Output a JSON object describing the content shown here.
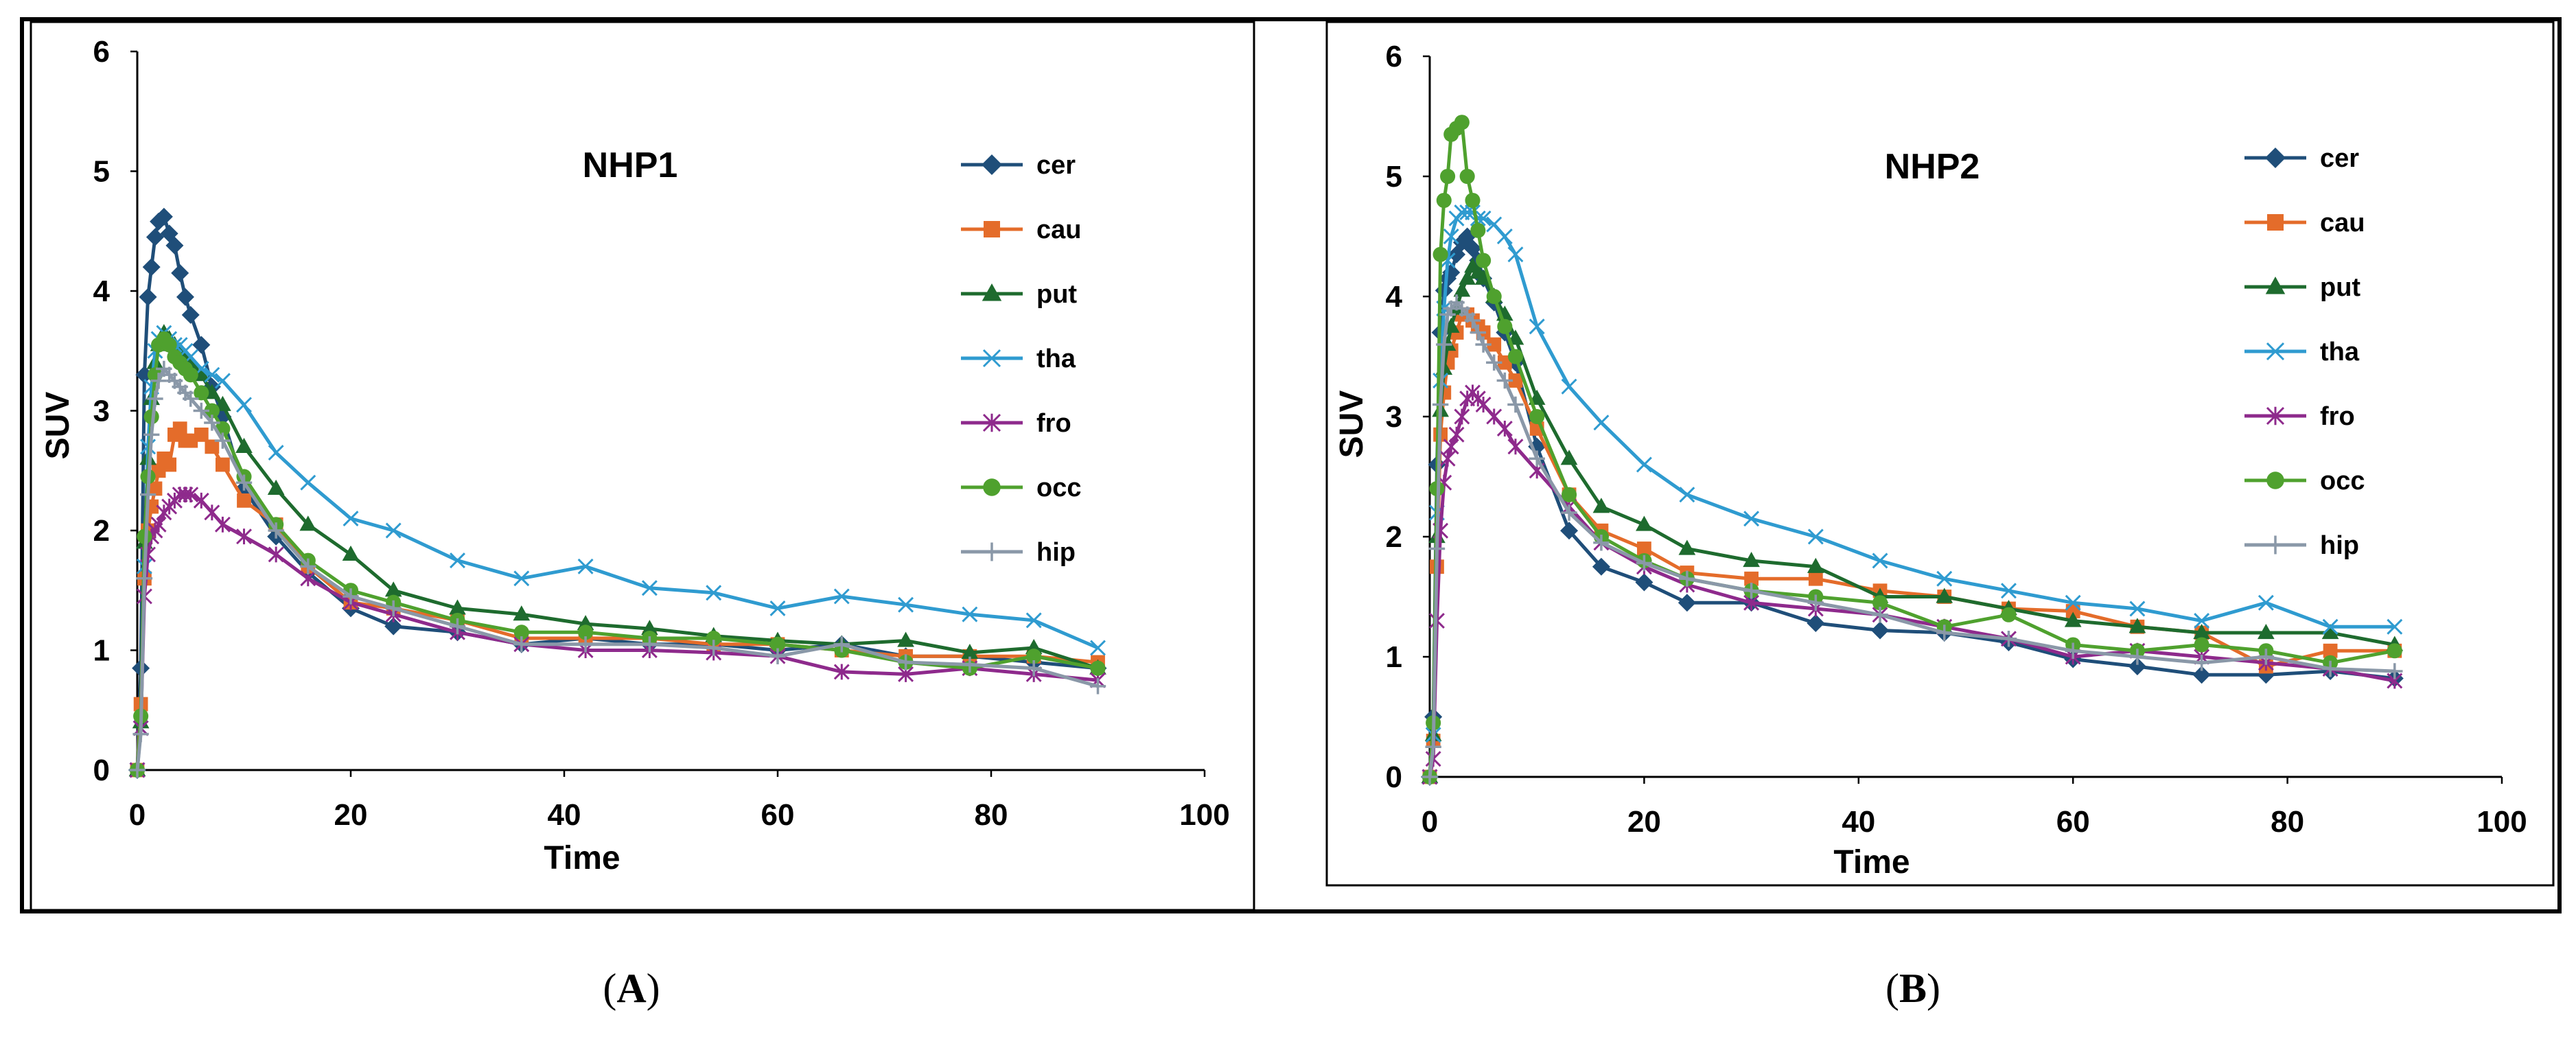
{
  "figure": {
    "captions": [
      {
        "open": "(",
        "letter": "A",
        "close": ")"
      },
      {
        "open": "(",
        "letter": "B",
        "close": ")"
      }
    ]
  },
  "series_styles": {
    "cer": {
      "color": "#1F4E79",
      "marker": "diamond"
    },
    "cau": {
      "color": "#E46C2A",
      "marker": "square"
    },
    "put": {
      "color": "#1E6B2E",
      "marker": "triangle"
    },
    "tha": {
      "color": "#2F9BD0",
      "marker": "x"
    },
    "fro": {
      "color": "#8E2A8C",
      "marker": "star"
    },
    "occ": {
      "color": "#4FA12E",
      "marker": "circle"
    },
    "hip": {
      "color": "#8A98A8",
      "marker": "plus"
    }
  },
  "chart_data": [
    {
      "type": "line",
      "title": "NHP1",
      "xlabel": "Time",
      "ylabel": "SUV",
      "xlim": [
        0,
        100
      ],
      "ylim": [
        0,
        6
      ],
      "xticks": [
        0,
        20,
        40,
        60,
        80,
        100
      ],
      "yticks": [
        0,
        1,
        2,
        3,
        4,
        5,
        6
      ],
      "legend_position": "right",
      "series": [
        {
          "name": "cer",
          "x": [
            0,
            0.33,
            0.67,
            1,
            1.33,
            1.67,
            2,
            2.5,
            3,
            3.5,
            4,
            4.5,
            5,
            6,
            7,
            8,
            10,
            13,
            16,
            20,
            24,
            30,
            36,
            42,
            48,
            54,
            60,
            66,
            72,
            78,
            84,
            90
          ],
          "y": [
            0,
            0.85,
            3.3,
            3.95,
            4.2,
            4.45,
            4.58,
            4.62,
            4.48,
            4.38,
            4.15,
            3.95,
            3.8,
            3.55,
            3.2,
            2.95,
            2.35,
            1.95,
            1.65,
            1.35,
            1.2,
            1.15,
            1.05,
            1.1,
            1.05,
            1.05,
            1.0,
            1.05,
            0.95,
            0.95,
            0.9,
            0.85
          ]
        },
        {
          "name": "cau",
          "x": [
            0,
            0.33,
            0.67,
            1,
            1.33,
            1.67,
            2,
            2.5,
            3,
            3.5,
            4,
            4.5,
            5,
            6,
            7,
            8,
            10,
            13,
            16,
            20,
            24,
            30,
            36,
            42,
            48,
            54,
            60,
            66,
            72,
            78,
            84,
            90
          ],
          "y": [
            0,
            0.55,
            1.6,
            2.0,
            2.2,
            2.35,
            2.5,
            2.6,
            2.55,
            2.8,
            2.85,
            2.75,
            2.75,
            2.8,
            2.7,
            2.55,
            2.25,
            2.05,
            1.7,
            1.4,
            1.35,
            1.25,
            1.1,
            1.1,
            1.1,
            1.05,
            1.05,
            1.0,
            0.95,
            0.95,
            0.95,
            0.9
          ]
        },
        {
          "name": "put",
          "x": [
            0,
            0.33,
            0.67,
            1,
            1.33,
            1.67,
            2,
            2.5,
            3,
            3.5,
            4,
            4.5,
            5,
            6,
            7,
            8,
            10,
            13,
            16,
            20,
            24,
            30,
            36,
            42,
            48,
            54,
            60,
            66,
            72,
            78,
            84,
            90
          ],
          "y": [
            0,
            0.4,
            1.9,
            2.6,
            3.1,
            3.4,
            3.55,
            3.65,
            3.6,
            3.55,
            3.5,
            3.45,
            3.4,
            3.3,
            3.15,
            3.05,
            2.7,
            2.35,
            2.05,
            1.8,
            1.5,
            1.35,
            1.3,
            1.22,
            1.18,
            1.12,
            1.08,
            1.05,
            1.08,
            0.98,
            1.02,
            0.85
          ]
        },
        {
          "name": "tha",
          "x": [
            0,
            0.33,
            0.67,
            1,
            1.33,
            1.67,
            2,
            2.5,
            3,
            3.5,
            4,
            4.5,
            5,
            6,
            7,
            8,
            10,
            13,
            16,
            20,
            24,
            30,
            36,
            42,
            48,
            54,
            60,
            66,
            72,
            78,
            84,
            90
          ],
          "y": [
            0,
            0.35,
            1.7,
            2.7,
            3.2,
            3.5,
            3.6,
            3.65,
            3.6,
            3.55,
            3.55,
            3.5,
            3.45,
            3.35,
            3.3,
            3.25,
            3.05,
            2.65,
            2.4,
            2.1,
            2.0,
            1.75,
            1.6,
            1.7,
            1.52,
            1.48,
            1.35,
            1.45,
            1.38,
            1.3,
            1.25,
            1.02
          ]
        },
        {
          "name": "fro",
          "x": [
            0,
            0.33,
            0.67,
            1,
            1.33,
            1.67,
            2,
            2.5,
            3,
            3.5,
            4,
            4.5,
            5,
            6,
            7,
            8,
            10,
            13,
            16,
            20,
            24,
            30,
            36,
            42,
            48,
            54,
            60,
            66,
            72,
            78,
            84,
            90
          ],
          "y": [
            0,
            0.35,
            1.45,
            1.8,
            1.95,
            2.0,
            2.05,
            2.15,
            2.2,
            2.25,
            2.3,
            2.3,
            2.3,
            2.25,
            2.15,
            2.05,
            1.95,
            1.8,
            1.6,
            1.4,
            1.3,
            1.15,
            1.05,
            1.0,
            1.0,
            0.98,
            0.95,
            0.82,
            0.8,
            0.85,
            0.8,
            0.75
          ]
        },
        {
          "name": "occ",
          "x": [
            0,
            0.33,
            0.67,
            1,
            1.33,
            1.67,
            2,
            2.5,
            3,
            3.5,
            4,
            4.5,
            5,
            6,
            7,
            8,
            10,
            13,
            16,
            20,
            24,
            30,
            36,
            42,
            48,
            54,
            60,
            66,
            72,
            78,
            84,
            90
          ],
          "y": [
            0,
            0.45,
            1.95,
            2.45,
            2.95,
            3.3,
            3.55,
            3.6,
            3.55,
            3.45,
            3.4,
            3.35,
            3.3,
            3.15,
            3.0,
            2.85,
            2.45,
            2.05,
            1.75,
            1.5,
            1.4,
            1.25,
            1.15,
            1.15,
            1.1,
            1.1,
            1.05,
            1.0,
            0.9,
            0.85,
            0.95,
            0.85
          ]
        },
        {
          "name": "hip",
          "x": [
            0,
            0.33,
            0.67,
            1,
            1.33,
            1.67,
            2,
            2.5,
            3,
            3.5,
            4,
            4.5,
            5,
            6,
            7,
            8,
            10,
            13,
            16,
            20,
            24,
            30,
            36,
            42,
            48,
            54,
            60,
            66,
            72,
            78,
            84,
            90
          ],
          "y": [
            0,
            0.3,
            1.6,
            2.3,
            2.8,
            3.1,
            3.25,
            3.35,
            3.3,
            3.25,
            3.2,
            3.15,
            3.1,
            3.0,
            2.9,
            2.75,
            2.4,
            2.0,
            1.7,
            1.45,
            1.35,
            1.2,
            1.05,
            1.05,
            1.05,
            1.02,
            0.95,
            1.05,
            0.9,
            0.88,
            0.85,
            0.7
          ]
        }
      ]
    },
    {
      "type": "line",
      "title": "NHP2",
      "xlabel": "Time",
      "ylabel": "SUV",
      "xlim": [
        0,
        100
      ],
      "ylim": [
        0,
        6
      ],
      "xticks": [
        0,
        20,
        40,
        60,
        80,
        100
      ],
      "yticks": [
        0,
        1,
        2,
        3,
        4,
        5,
        6
      ],
      "legend_position": "right",
      "series": [
        {
          "name": "cer",
          "x": [
            0,
            0.33,
            0.67,
            1,
            1.33,
            1.67,
            2,
            2.5,
            3,
            3.5,
            4,
            4.5,
            5,
            6,
            7,
            8,
            10,
            13,
            16,
            20,
            24,
            30,
            36,
            42,
            48,
            54,
            60,
            66,
            72,
            78,
            84,
            90
          ],
          "y": [
            0,
            0.5,
            2.6,
            3.7,
            4.05,
            4.15,
            4.2,
            4.35,
            4.45,
            4.5,
            4.4,
            4.3,
            4.15,
            3.95,
            3.7,
            3.45,
            2.75,
            2.05,
            1.75,
            1.62,
            1.45,
            1.45,
            1.28,
            1.22,
            1.2,
            1.12,
            0.98,
            0.92,
            0.85,
            0.85,
            0.88,
            0.82
          ]
        },
        {
          "name": "cau",
          "x": [
            0,
            0.33,
            0.67,
            1,
            1.33,
            1.67,
            2,
            2.5,
            3,
            3.5,
            4,
            4.5,
            5,
            6,
            7,
            8,
            10,
            13,
            16,
            20,
            24,
            30,
            36,
            42,
            48,
            54,
            60,
            66,
            72,
            78,
            84,
            90
          ],
          "y": [
            0,
            0.3,
            1.75,
            2.85,
            3.2,
            3.45,
            3.55,
            3.7,
            3.85,
            3.85,
            3.8,
            3.75,
            3.7,
            3.6,
            3.45,
            3.3,
            2.9,
            2.35,
            2.05,
            1.9,
            1.7,
            1.65,
            1.65,
            1.55,
            1.5,
            1.4,
            1.38,
            1.25,
            1.2,
            0.92,
            1.05,
            1.05
          ]
        },
        {
          "name": "put",
          "x": [
            0,
            0.33,
            0.67,
            1,
            1.33,
            1.67,
            2,
            2.5,
            3,
            3.5,
            4,
            4.5,
            5,
            6,
            7,
            8,
            10,
            13,
            16,
            20,
            24,
            30,
            36,
            42,
            48,
            54,
            60,
            66,
            72,
            78,
            84,
            90
          ],
          "y": [
            0,
            0.35,
            2.0,
            3.05,
            3.4,
            3.6,
            3.75,
            3.9,
            4.05,
            4.15,
            4.25,
            4.2,
            4.15,
            4.0,
            3.85,
            3.65,
            3.15,
            2.65,
            2.25,
            2.1,
            1.9,
            1.8,
            1.75,
            1.5,
            1.5,
            1.4,
            1.3,
            1.25,
            1.2,
            1.2,
            1.2,
            1.1
          ]
        },
        {
          "name": "tha",
          "x": [
            0,
            0.33,
            0.67,
            1,
            1.33,
            1.67,
            2,
            2.5,
            3,
            3.5,
            4,
            4.5,
            5,
            6,
            7,
            8,
            10,
            13,
            16,
            20,
            24,
            30,
            36,
            42,
            48,
            54,
            60,
            66,
            72,
            78,
            84,
            90
          ],
          "y": [
            0,
            0.35,
            2.2,
            3.3,
            3.9,
            4.3,
            4.5,
            4.65,
            4.7,
            4.7,
            4.7,
            4.65,
            4.65,
            4.6,
            4.5,
            4.35,
            3.75,
            3.25,
            2.95,
            2.6,
            2.35,
            2.15,
            2.0,
            1.8,
            1.65,
            1.55,
            1.45,
            1.4,
            1.3,
            1.45,
            1.25,
            1.25
          ]
        },
        {
          "name": "fro",
          "x": [
            0,
            0.33,
            0.67,
            1,
            1.33,
            1.67,
            2,
            2.5,
            3,
            3.5,
            4,
            4.5,
            5,
            6,
            7,
            8,
            10,
            13,
            16,
            20,
            24,
            30,
            36,
            42,
            48,
            54,
            60,
            66,
            72,
            78,
            84,
            90
          ],
          "y": [
            0,
            0.15,
            1.3,
            2.05,
            2.45,
            2.65,
            2.75,
            2.85,
            3.0,
            3.15,
            3.2,
            3.15,
            3.1,
            3.0,
            2.9,
            2.75,
            2.55,
            2.25,
            1.95,
            1.75,
            1.6,
            1.45,
            1.4,
            1.35,
            1.25,
            1.15,
            1.0,
            1.05,
            1.0,
            0.95,
            0.9,
            0.8
          ]
        },
        {
          "name": "occ",
          "x": [
            0,
            0.33,
            0.67,
            1,
            1.33,
            1.67,
            2,
            2.5,
            3,
            3.5,
            4,
            4.5,
            5,
            6,
            7,
            8,
            10,
            13,
            16,
            20,
            24,
            30,
            36,
            42,
            48,
            54,
            60,
            66,
            72,
            78,
            84,
            90
          ],
          "y": [
            0,
            0.45,
            2.4,
            4.35,
            4.8,
            5.0,
            5.35,
            5.4,
            5.45,
            5.0,
            4.8,
            4.55,
            4.3,
            4.0,
            3.75,
            3.5,
            3.0,
            2.35,
            2.0,
            1.8,
            1.65,
            1.55,
            1.5,
            1.45,
            1.25,
            1.35,
            1.1,
            1.05,
            1.1,
            1.05,
            0.95,
            1.05
          ]
        },
        {
          "name": "hip",
          "x": [
            0,
            0.33,
            0.67,
            1,
            1.33,
            1.67,
            2,
            2.5,
            3,
            3.5,
            4,
            4.5,
            5,
            6,
            7,
            8,
            10,
            13,
            16,
            20,
            24,
            30,
            36,
            42,
            48,
            54,
            60,
            66,
            72,
            78,
            84,
            90
          ],
          "y": [
            0,
            0.25,
            1.9,
            3.1,
            3.6,
            3.85,
            3.9,
            3.95,
            3.9,
            3.85,
            3.8,
            3.7,
            3.6,
            3.45,
            3.3,
            3.1,
            2.65,
            2.2,
            1.95,
            1.78,
            1.65,
            1.55,
            1.45,
            1.35,
            1.2,
            1.15,
            1.05,
            1.0,
            0.95,
            1.0,
            0.9,
            0.88
          ]
        }
      ]
    }
  ]
}
